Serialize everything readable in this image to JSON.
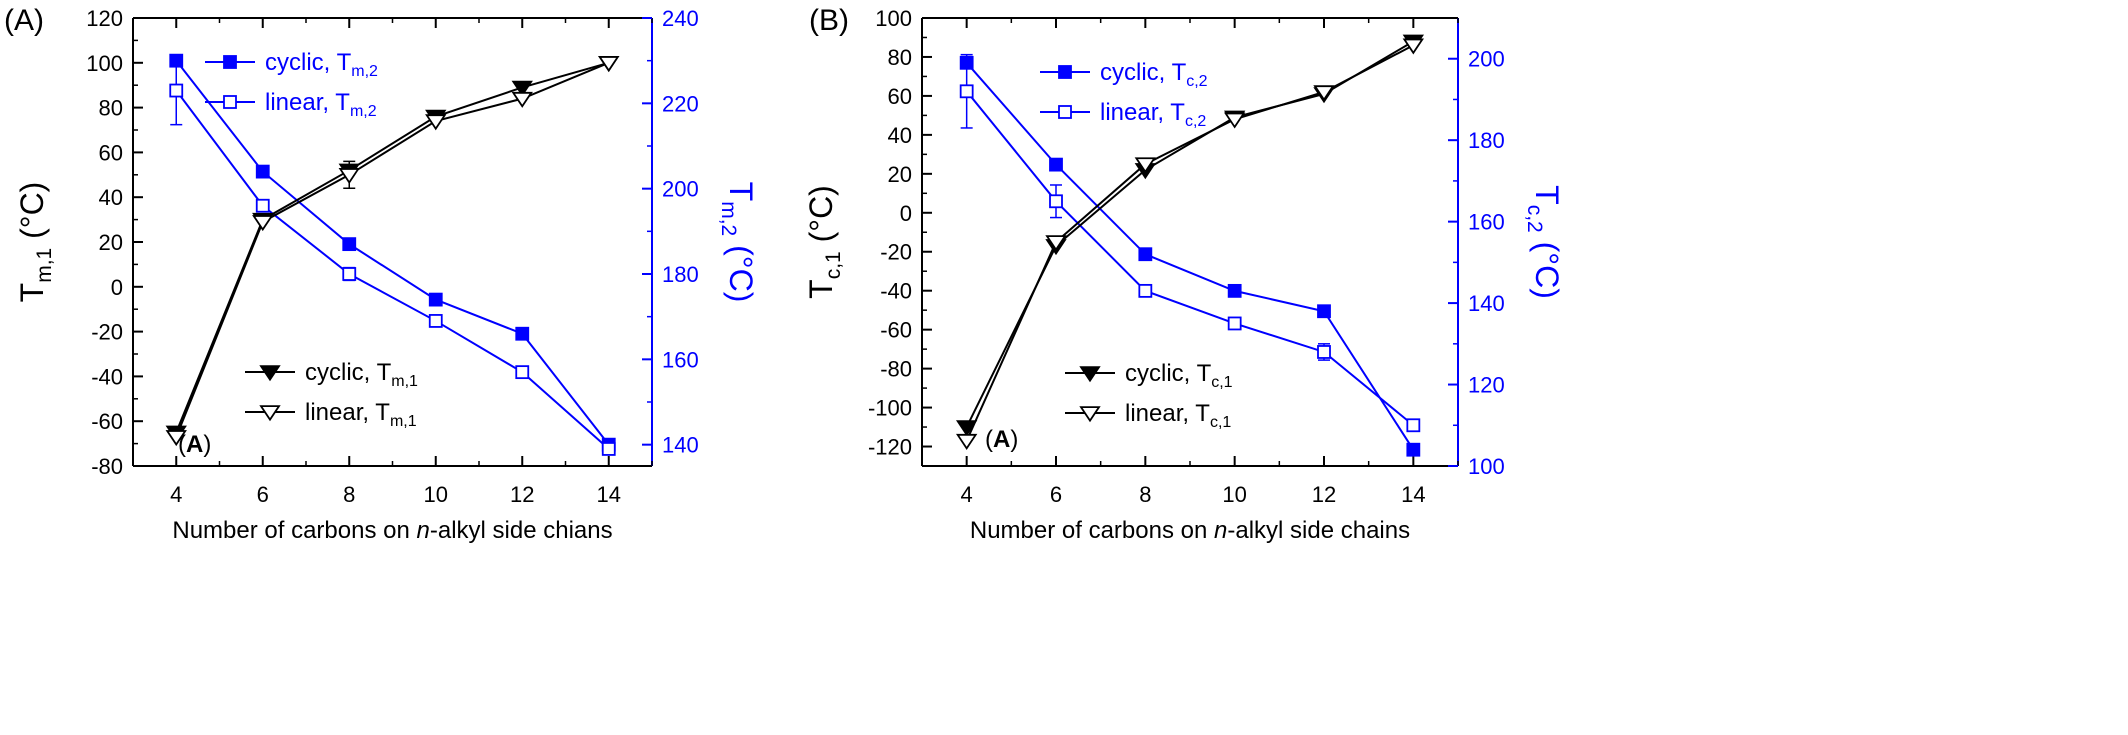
{
  "colors": {
    "left_axis": "#000000",
    "right_axis": "#0000ff",
    "series_black": "#000000",
    "series_blue": "#0000ff"
  },
  "chart_data": [
    {
      "type": "line",
      "panel_label": "(A)",
      "inner_label": "A",
      "xlabel_parts": [
        "Number of carbons on ",
        "n",
        "-alkyl side chians"
      ],
      "x_ticks": [
        4,
        6,
        8,
        10,
        12,
        14
      ],
      "xlim": [
        3,
        15
      ],
      "y_left": {
        "label_main": "T",
        "label_sub": "m,1",
        "label_unit": " (°C)",
        "lim": [
          -80,
          120
        ],
        "ticks": [
          -80,
          -60,
          -40,
          -20,
          0,
          20,
          40,
          60,
          80,
          100,
          120
        ]
      },
      "y_right": {
        "label_main": "T",
        "label_sub": "m,2",
        "label_unit": " (°C)",
        "lim": [
          135,
          240
        ],
        "ticks": [
          140,
          160,
          180,
          200,
          220,
          240
        ]
      },
      "legend_blue": {
        "placement": "top-left",
        "entries": [
          {
            "main": "cyclic, T",
            "sub": "m,2"
          },
          {
            "main": "linear, T",
            "sub": "m,2"
          }
        ]
      },
      "legend_black": {
        "placement": "bottom-center",
        "entries": [
          {
            "main": "cyclic, T",
            "sub": "m,1"
          },
          {
            "main": "linear, T",
            "sub": "m,1"
          }
        ]
      },
      "series": [
        {
          "axis": "right",
          "color": "#0000ff",
          "marker": "square-filled",
          "x": [
            4,
            6,
            8,
            10,
            12,
            14
          ],
          "y": [
            230,
            204,
            187,
            174,
            166,
            140
          ],
          "err": [
            0,
            0,
            0,
            0,
            0,
            0
          ]
        },
        {
          "axis": "right",
          "color": "#0000ff",
          "marker": "square-open",
          "x": [
            4,
            6,
            8,
            10,
            12,
            14
          ],
          "y": [
            223,
            196,
            180,
            169,
            157,
            139
          ],
          "err": [
            8,
            0,
            1.5,
            1,
            0,
            1
          ]
        },
        {
          "axis": "left",
          "color": "#000000",
          "marker": "tri-down-filled",
          "x": [
            4,
            6,
            8,
            10,
            12,
            14
          ],
          "y": [
            -65,
            30,
            52,
            76,
            89,
            100
          ],
          "err": [
            0,
            0,
            0,
            0,
            0,
            0
          ]
        },
        {
          "axis": "left",
          "color": "#000000",
          "marker": "tri-down-open",
          "x": [
            4,
            6,
            8,
            10,
            12,
            14
          ],
          "y": [
            -67,
            29,
            50,
            74,
            84,
            100
          ],
          "err": [
            0,
            0,
            6,
            0,
            0,
            0
          ]
        }
      ]
    },
    {
      "type": "line",
      "panel_label": "(B)",
      "inner_label": "A",
      "xlabel_parts": [
        "Number of carbons on ",
        "n",
        "-alkyl side chains"
      ],
      "x_ticks": [
        4,
        6,
        8,
        10,
        12,
        14
      ],
      "xlim": [
        3,
        15
      ],
      "y_left": {
        "label_main": "T",
        "label_sub": "c,1",
        "label_unit": " (°C)",
        "lim": [
          -130,
          100
        ],
        "ticks": [
          -120,
          -100,
          -80,
          -60,
          -40,
          -20,
          0,
          20,
          40,
          60,
          80,
          100
        ]
      },
      "y_right": {
        "label_main": "T",
        "label_sub": "c,2",
        "label_unit": " (°C)",
        "lim": [
          100,
          210
        ],
        "ticks": [
          100,
          120,
          140,
          160,
          180,
          200
        ]
      },
      "legend_blue": {
        "placement": "top-left",
        "entries": [
          {
            "main": "cyclic, T",
            "sub": "c,2"
          },
          {
            "main": "linear, T",
            "sub": "c,2"
          }
        ]
      },
      "legend_black": {
        "placement": "bottom-center",
        "entries": [
          {
            "main": "cyclic, T",
            "sub": "c,1"
          },
          {
            "main": "linear, T",
            "sub": "c,1"
          }
        ]
      },
      "series": [
        {
          "axis": "right",
          "color": "#0000ff",
          "marker": "square-filled",
          "x": [
            4,
            6,
            8,
            10,
            12,
            14
          ],
          "y": [
            199,
            174,
            152,
            143,
            138,
            104
          ],
          "err": [
            0,
            0,
            1,
            0,
            0,
            1
          ]
        },
        {
          "axis": "right",
          "color": "#0000ff",
          "marker": "square-open",
          "x": [
            4,
            6,
            8,
            10,
            12,
            14
          ],
          "y": [
            192,
            165,
            143,
            135,
            128,
            110
          ],
          "err": [
            9,
            4,
            0,
            0,
            2,
            0
          ]
        },
        {
          "axis": "left",
          "color": "#000000",
          "marker": "tri-down-filled",
          "x": [
            4,
            6,
            8,
            10,
            12,
            14
          ],
          "y": [
            -110,
            -17,
            22,
            49,
            61,
            88
          ],
          "err": [
            0,
            0,
            0,
            0,
            0,
            0
          ]
        },
        {
          "axis": "left",
          "color": "#000000",
          "marker": "tri-down-open",
          "x": [
            4,
            6,
            8,
            10,
            12,
            14
          ],
          "y": [
            -117,
            -15,
            25,
            48,
            62,
            86
          ],
          "err": [
            0,
            0,
            0,
            0,
            0,
            0
          ]
        }
      ]
    }
  ]
}
